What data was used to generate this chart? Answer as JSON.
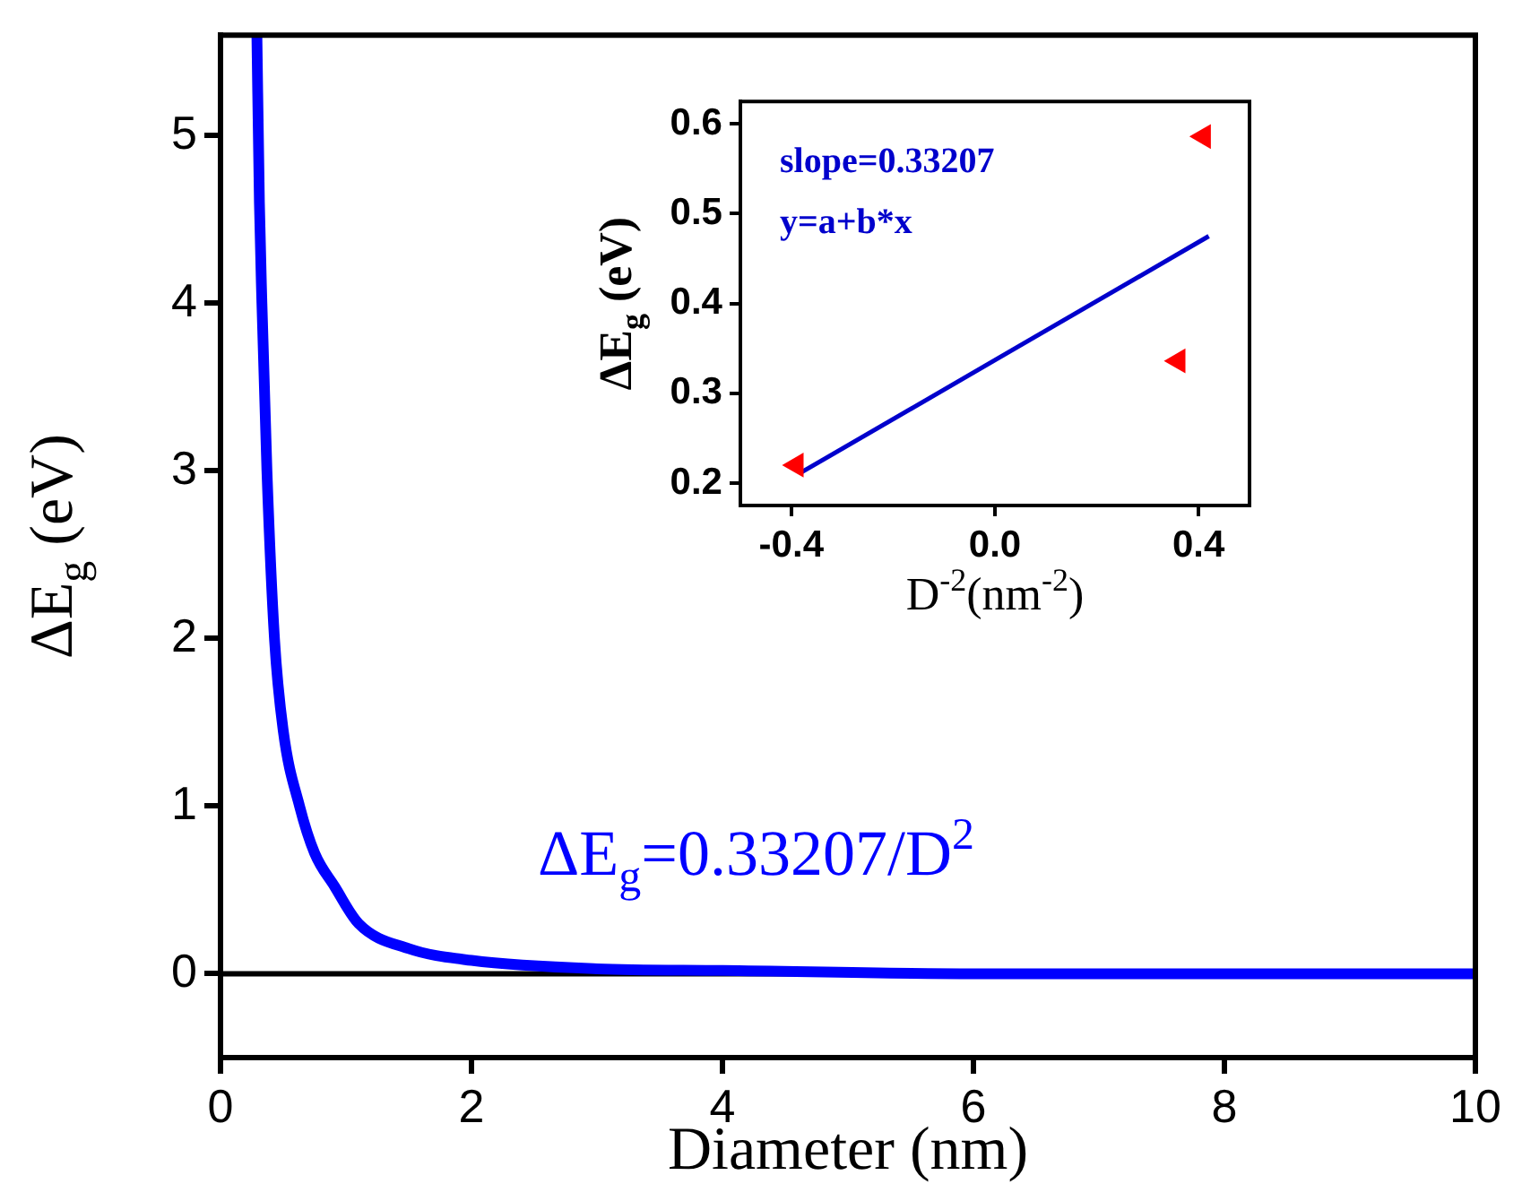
{
  "chart_data": [
    {
      "type": "line",
      "xlabel": "Diameter (nm)",
      "ylabel": "ΔE$_{g}$ (eV)",
      "xlim": [
        0,
        10
      ],
      "ylim": [
        -0.5,
        5.6
      ],
      "xticks": [
        0,
        2,
        4,
        6,
        8,
        10
      ],
      "yticks": [
        0,
        1,
        2,
        3,
        4,
        5
      ],
      "grid": false,
      "legend": false,
      "line_style": "solid",
      "series": [
        {
          "color": "#0000ff",
          "x": [
            0.29,
            0.31,
            0.33,
            0.37,
            0.43,
            0.5,
            0.63,
            0.75,
            0.91,
            1.1,
            1.5,
            2,
            3,
            4,
            6,
            8,
            10
          ],
          "values": [
            5.6,
            4.6,
            4,
            3,
            2,
            1.45,
            1,
            0.72,
            0.52,
            0.3,
            0.15,
            0.08,
            0.03,
            0.02,
            0,
            0,
            0
          ]
        }
      ],
      "ref_lines": [
        {
          "axis": "y",
          "value": 0,
          "color": "#000000"
        }
      ],
      "annotations": [
        "ΔE$_{g}$=0.33207/D$^{2}$"
      ]
    },
    {
      "type": "scatter",
      "xlabel": "D$^{-2}$(nm$^{-2}$)",
      "ylabel": "ΔE$_{g}$ (eV)",
      "xlim": [
        -0.5,
        0.5
      ],
      "ylim": [
        0.175,
        0.625
      ],
      "xticks": [
        -0.4,
        {
          "value": 0,
          "label": "0.0"
        },
        0.4
      ],
      "yticks": [
        0.2,
        0.3,
        0.4,
        0.5,
        0.6
      ],
      "grid": false,
      "legend": false,
      "series": [
        {
          "marker": "triangle",
          "color": "#ff0000",
          "x": [
            -0.39,
            0.36,
            0.41
          ],
          "values": [
            0.22,
            0.336,
            0.586
          ]
        },
        {
          "type": "line",
          "color": "#0000cc",
          "x": [
            -0.38,
            0.42
          ],
          "values": [
            0.212,
            0.475
          ]
        }
      ],
      "annotations": [
        "slope=0.33207",
        "y=a+b*x"
      ]
    }
  ]
}
